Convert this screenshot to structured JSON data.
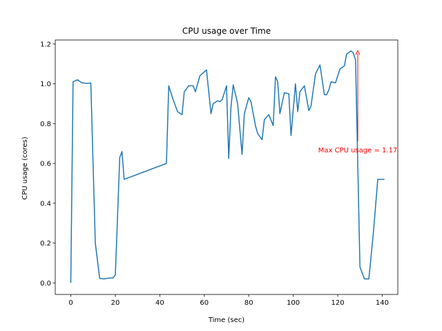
{
  "chart_data": {
    "type": "line",
    "title": "CPU usage over Time",
    "xlabel": "Time (sec)",
    "ylabel": "CPU usage (cores)",
    "xlim": [
      -7,
      147
    ],
    "ylim": [
      -0.058,
      1.22
    ],
    "xticks": [
      0,
      20,
      40,
      60,
      80,
      100,
      120,
      140
    ],
    "yticks": [
      0.0,
      0.2,
      0.4,
      0.6,
      0.8,
      1.0,
      1.2
    ],
    "xtick_labels": [
      "0",
      "20",
      "40",
      "60",
      "80",
      "100",
      "120",
      "140"
    ],
    "ytick_labels": [
      "0.0",
      "0.2",
      "0.4",
      "0.6",
      "0.8",
      "1.0",
      "1.2"
    ],
    "line_color": "#1f77b4",
    "series": [
      {
        "name": "CPU usage",
        "x": [
          0,
          1,
          3,
          5,
          7,
          9,
          11,
          13,
          15,
          17,
          19,
          20,
          22,
          23,
          24,
          43,
          44,
          46,
          48,
          50,
          51,
          53,
          55,
          56,
          58,
          60,
          61,
          63,
          64,
          66,
          67,
          68,
          70,
          71,
          72,
          73,
          75,
          77,
          78,
          80,
          81,
          83,
          84,
          86,
          87,
          89,
          91,
          92,
          93,
          94,
          96,
          98,
          99,
          101,
          102,
          103,
          105,
          107,
          108,
          110,
          112,
          114,
          115,
          116,
          117,
          119,
          121,
          123,
          124,
          126,
          127,
          128,
          129,
          130,
          132,
          134,
          136,
          138,
          139,
          140,
          141
        ],
        "values": [
          0.0,
          1.01,
          1.02,
          1.005,
          1.002,
          1.004,
          0.2,
          0.022,
          0.02,
          0.024,
          0.025,
          0.04,
          0.63,
          0.66,
          0.52,
          0.6,
          0.99,
          0.92,
          0.86,
          0.845,
          0.96,
          0.99,
          0.99,
          0.96,
          1.04,
          1.06,
          1.07,
          0.85,
          0.9,
          0.915,
          0.91,
          0.92,
          0.99,
          0.625,
          0.88,
          0.995,
          0.9,
          0.645,
          0.85,
          0.93,
          0.91,
          0.79,
          0.75,
          0.72,
          0.82,
          0.845,
          0.79,
          1.035,
          1.01,
          0.85,
          0.955,
          0.95,
          0.74,
          1.0,
          0.86,
          0.96,
          0.99,
          0.865,
          0.89,
          1.05,
          1.095,
          0.945,
          0.945,
          0.97,
          1.01,
          1.005,
          1.075,
          1.09,
          1.15,
          1.165,
          1.155,
          1.12,
          0.6,
          0.08,
          0.02,
          0.02,
          0.25,
          0.52,
          0.52,
          0.52,
          0.52
        ]
      }
    ],
    "annotation": {
      "text": "Max CPU usage = 1.17",
      "x": 129,
      "y": 1.17,
      "text_x": 129,
      "text_y": 0.67,
      "color": "#ff0000"
    }
  }
}
